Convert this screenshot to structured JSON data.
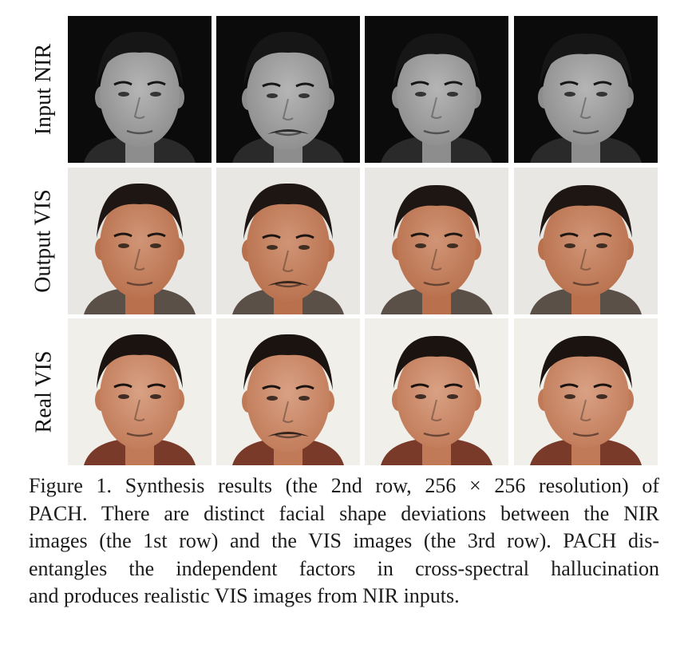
{
  "figure": {
    "row_labels": [
      "Input NIR",
      "Output VIS",
      "Real VIS"
    ],
    "rows": [
      {
        "kind": "nir",
        "colors": {
          "bg": "#0b0b0b",
          "skin": "#8d8d8d",
          "skin_light": "#b5b5b5",
          "hair": "#161616",
          "shirt": "#2a2a2a"
        }
      },
      {
        "kind": "vis-output",
        "colors": {
          "bg": "#e9e7e3",
          "skin": "#b8704d",
          "skin_light": "#d09576",
          "hair": "#1e1612",
          "shirt": "#5b5047"
        }
      },
      {
        "kind": "vis-real",
        "colors": {
          "bg": "#f1efe9",
          "skin": "#c07a58",
          "skin_light": "#d9a184",
          "hair": "#1b1310",
          "shirt": "#7a3a2a"
        }
      }
    ]
  },
  "caption": {
    "lines": [
      "Figure 1. Synthesis results (the 2nd row, 256 × 256 resolution) of",
      "PACH. There are distinct facial shape deviations between the NIR",
      "images (the 1st row) and the VIS images (the 3rd row). PACH dis-",
      "entangles the independent factors in cross-spectral hallucination",
      "and produces realistic VIS images from NIR inputs."
    ]
  }
}
